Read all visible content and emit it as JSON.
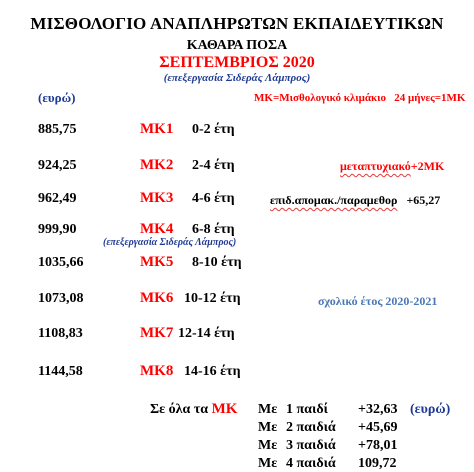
{
  "header": {
    "title": "ΜΙΣΘΟΛΟΓΙΟ ΑΝΑΠΛΗΡΩΤΩΝ ΕΚΠΑΙΔΕΥΤΙΚΩΝ",
    "subtitle": "ΚΑΘΑΡΑ ΠΟΣΑ",
    "month": "ΣΕΠΤΕΜΒΡΙΟΣ 2020",
    "credit": "(επεξεργασία Σιδεράς Λάμπρος)",
    "unit": "(ευρώ)",
    "legend_a": "ΜΚ=Μισθολογικό κλιμάκιο",
    "legend_b": "24 μήνες=1ΜΚ"
  },
  "rows": [
    {
      "amount": "885,75",
      "mk": "ΜΚ1",
      "years": "0-2 έτη"
    },
    {
      "amount": "924,25",
      "mk": "ΜΚ2",
      "years": "2-4 έτη"
    },
    {
      "amount": "962,49",
      "mk": "ΜΚ3",
      "years": "4-6 έτη"
    },
    {
      "amount": "999,90",
      "mk": "ΜΚ4",
      "years": "6-8 έτη"
    },
    {
      "amount": "1035,66",
      "mk": "ΜΚ5",
      "years": "8-10 έτη"
    },
    {
      "amount": "1073,08",
      "mk": "ΜΚ6",
      "years": "10-12 έτη"
    },
    {
      "amount": "1108,83",
      "mk": "ΜΚ7",
      "years": "12-14 έτη"
    },
    {
      "amount": "1144,58",
      "mk": "ΜΚ8",
      "years": "14-16 έτη"
    }
  ],
  "notes": {
    "postgrad": "μεταπτυχιακό",
    "postgrad_plus": "+2ΜΚ",
    "remote": "επιδ.απομακ./παραμεθορ",
    "remote_plus": "+65,27",
    "credit2": "(επεξεργασία Σιδεράς Λάμπρος)",
    "school_year": "σχολικό έτος 2020-2021"
  },
  "children": {
    "intro_a": "Σε όλα τα",
    "intro_mk": "ΜΚ",
    "unit": "(ευρώ)",
    "lines": [
      {
        "me": "Με",
        "label": "1 παιδί",
        "value": "+32,63"
      },
      {
        "me": "Με",
        "label": "2 παιδιά",
        "value": "+45,69"
      },
      {
        "me": "Με",
        "label": "3 παιδιά",
        "value": "+78,01"
      },
      {
        "me": "Με",
        "label": "4 παιδιά",
        "value": "109,72"
      }
    ]
  }
}
